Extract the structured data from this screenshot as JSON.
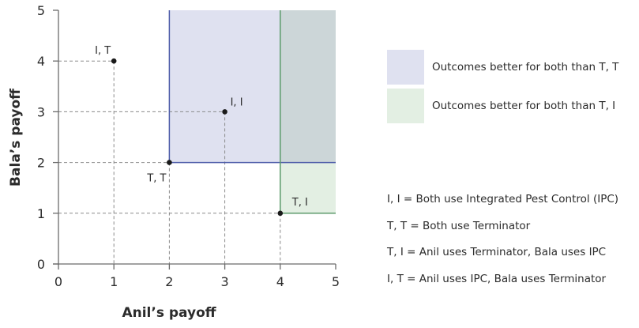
{
  "chart_data": {
    "type": "scatter",
    "title": "",
    "xlabel": "Anil’s payoff",
    "ylabel": "Bala’s payoff",
    "xlim": [
      0,
      5
    ],
    "ylim": [
      0,
      5
    ],
    "xticks": [
      "0",
      "1",
      "2",
      "3",
      "4",
      "5"
    ],
    "yticks": [
      "0",
      "1",
      "2",
      "3",
      "4",
      "5"
    ],
    "grid": false,
    "points": [
      {
        "label": "I, T",
        "x": 1,
        "y": 4
      },
      {
        "label": "I, I",
        "x": 3,
        "y": 3
      },
      {
        "label": "T, T",
        "x": 2,
        "y": 2
      },
      {
        "label": "T, I",
        "x": 4,
        "y": 1
      }
    ],
    "regions": [
      {
        "name": "Outcomes better for both than T, T",
        "x_min": 2,
        "x_max": 5,
        "y_min": 2,
        "y_max": 5,
        "fill": "#dfe1f0",
        "line": "#4b5aa8"
      },
      {
        "name": "Outcomes better for both than T, I",
        "x_min": 4,
        "x_max": 5,
        "y_min": 1,
        "y_max": 5,
        "fill": "#e3efe3",
        "line": "#5c9b6b"
      }
    ],
    "overlap_fill": "#ccd6d8",
    "legend_position": "right"
  },
  "legend": {
    "items": [
      {
        "label": "Outcomes better for both than T, T",
        "color": "#dfe1f0"
      },
      {
        "label": "Outcomes better for both than T, I",
        "color": "#e3efe3"
      }
    ],
    "key": [
      "I, I = Both use Integrated Pest Control (IPC)",
      "T, T = Both use Terminator",
      "T, I = Anil uses Terminator, Bala uses IPC",
      "I, T = Anil uses IPC, Bala uses Terminator"
    ]
  }
}
